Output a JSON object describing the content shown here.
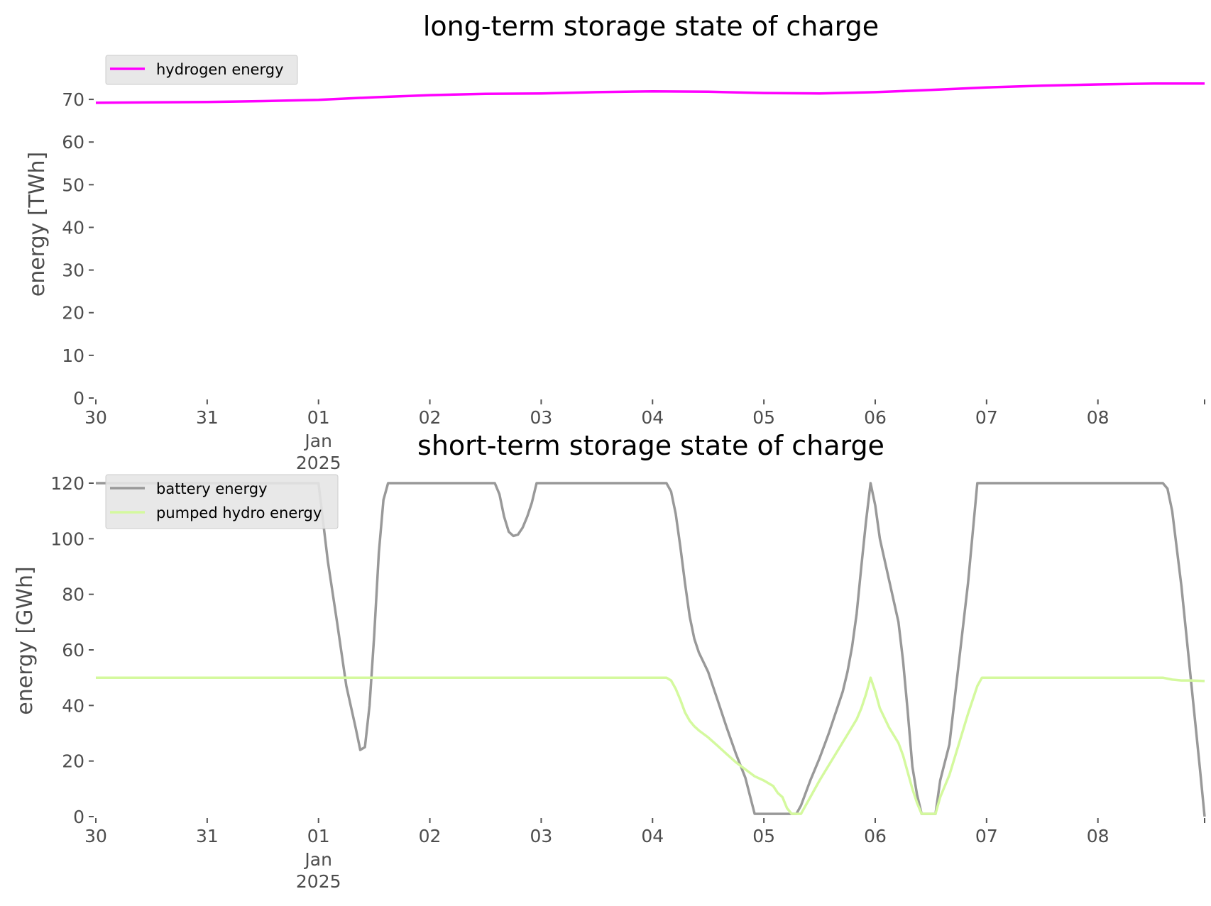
{
  "chart_data": [
    {
      "type": "line",
      "title": "long-term storage state of charge",
      "xlabel": "",
      "ylabel": "energy [TWh]",
      "ylim": [
        0,
        76
      ],
      "xlim": [
        "2024-12-30T00:00",
        "2025-01-08T23:00"
      ],
      "grid": false,
      "legend": "top-left",
      "x_ticks": [
        {
          "date": "2024-12-30",
          "label": "30",
          "sub1": "",
          "sub2": ""
        },
        {
          "date": "2024-12-31",
          "label": "31",
          "sub1": "",
          "sub2": ""
        },
        {
          "date": "2025-01-01",
          "label": "01",
          "sub1": "Jan",
          "sub2": "2025"
        },
        {
          "date": "2025-01-02",
          "label": "02",
          "sub1": "",
          "sub2": ""
        },
        {
          "date": "2025-01-03",
          "label": "03",
          "sub1": "",
          "sub2": ""
        },
        {
          "date": "2025-01-04",
          "label": "04",
          "sub1": "",
          "sub2": ""
        },
        {
          "date": "2025-01-05",
          "label": "05",
          "sub1": "",
          "sub2": ""
        },
        {
          "date": "2025-01-06",
          "label": "06",
          "sub1": "",
          "sub2": ""
        },
        {
          "date": "2025-01-07",
          "label": "07",
          "sub1": "",
          "sub2": ""
        },
        {
          "date": "2025-01-08",
          "label": "08",
          "sub1": "",
          "sub2": ""
        }
      ],
      "y_ticks": [
        0,
        10,
        20,
        30,
        40,
        50,
        60,
        70
      ],
      "series": [
        {
          "name": "hydrogen energy",
          "color": "#ff00ff",
          "points": [
            [
              "2024-12-30T00:00",
              69.2
            ],
            [
              "2024-12-30T12:00",
              69.3
            ],
            [
              "2024-12-31T00:00",
              69.4
            ],
            [
              "2024-12-31T12:00",
              69.6
            ],
            [
              "2025-01-01T00:00",
              69.9
            ],
            [
              "2025-01-01T12:00",
              70.5
            ],
            [
              "2025-01-02T00:00",
              71.0
            ],
            [
              "2025-01-02T12:00",
              71.3
            ],
            [
              "2025-01-03T00:00",
              71.4
            ],
            [
              "2025-01-03T12:00",
              71.7
            ],
            [
              "2025-01-04T00:00",
              71.9
            ],
            [
              "2025-01-04T12:00",
              71.8
            ],
            [
              "2025-01-05T00:00",
              71.5
            ],
            [
              "2025-01-05T12:00",
              71.4
            ],
            [
              "2025-01-06T00:00",
              71.7
            ],
            [
              "2025-01-06T12:00",
              72.2
            ],
            [
              "2025-01-07T00:00",
              72.8
            ],
            [
              "2025-01-07T12:00",
              73.2
            ],
            [
              "2025-01-08T00:00",
              73.5
            ],
            [
              "2025-01-08T12:00",
              73.7
            ],
            [
              "2025-01-08T23:00",
              73.7
            ]
          ]
        }
      ]
    },
    {
      "type": "line",
      "title": "short-term storage state of charge",
      "xlabel": "",
      "ylabel": "energy [GWh]",
      "ylim": [
        0,
        120
      ],
      "xlim": [
        "2024-12-30T00:00",
        "2025-01-08T23:00"
      ],
      "grid": false,
      "legend": "top-left",
      "x_ticks": [
        {
          "date": "2024-12-30",
          "label": "30",
          "sub1": "",
          "sub2": ""
        },
        {
          "date": "2024-12-31",
          "label": "31",
          "sub1": "",
          "sub2": ""
        },
        {
          "date": "2025-01-01",
          "label": "01",
          "sub1": "Jan",
          "sub2": "2025"
        },
        {
          "date": "2025-01-02",
          "label": "02",
          "sub1": "",
          "sub2": ""
        },
        {
          "date": "2025-01-03",
          "label": "03",
          "sub1": "",
          "sub2": ""
        },
        {
          "date": "2025-01-04",
          "label": "04",
          "sub1": "",
          "sub2": ""
        },
        {
          "date": "2025-01-05",
          "label": "05",
          "sub1": "",
          "sub2": ""
        },
        {
          "date": "2025-01-06",
          "label": "06",
          "sub1": "",
          "sub2": ""
        },
        {
          "date": "2025-01-07",
          "label": "07",
          "sub1": "",
          "sub2": ""
        },
        {
          "date": "2025-01-08",
          "label": "08",
          "sub1": "",
          "sub2": ""
        }
      ],
      "y_ticks": [
        0,
        20,
        40,
        60,
        80,
        100,
        120
      ],
      "series": [
        {
          "name": "battery energy",
          "color": "#999999",
          "points": [
            [
              "2024-12-30T00:00",
              120
            ],
            [
              "2024-12-31T00:00",
              120
            ],
            [
              "2025-01-01T00:00",
              120
            ],
            [
              "2025-01-01T02:00",
              92
            ],
            [
              "2025-01-01T04:00",
              70
            ],
            [
              "2025-01-01T06:00",
              47
            ],
            [
              "2025-01-01T08:00",
              32
            ],
            [
              "2025-01-01T09:00",
              24
            ],
            [
              "2025-01-01T10:00",
              25
            ],
            [
              "2025-01-01T11:00",
              40
            ],
            [
              "2025-01-01T12:00",
              65
            ],
            [
              "2025-01-01T13:00",
              95
            ],
            [
              "2025-01-01T14:00",
              114
            ],
            [
              "2025-01-01T15:00",
              120
            ],
            [
              "2025-01-02T00:00",
              120
            ],
            [
              "2025-01-02T14:00",
              120
            ],
            [
              "2025-01-02T15:00",
              116
            ],
            [
              "2025-01-02T16:00",
              108
            ],
            [
              "2025-01-02T17:00",
              102.5
            ],
            [
              "2025-01-02T18:00",
              101
            ],
            [
              "2025-01-02T19:00",
              101.5
            ],
            [
              "2025-01-02T20:00",
              104
            ],
            [
              "2025-01-02T21:00",
              108
            ],
            [
              "2025-01-02T22:00",
              113
            ],
            [
              "2025-01-02T23:00",
              120
            ],
            [
              "2025-01-03T00:00",
              120
            ],
            [
              "2025-01-04T03:00",
              120
            ],
            [
              "2025-01-04T04:00",
              117
            ],
            [
              "2025-01-04T05:00",
              109
            ],
            [
              "2025-01-04T06:00",
              97
            ],
            [
              "2025-01-04T07:00",
              84
            ],
            [
              "2025-01-04T08:00",
              72
            ],
            [
              "2025-01-04T09:00",
              64
            ],
            [
              "2025-01-04T10:00",
              59
            ],
            [
              "2025-01-04T11:00",
              55.5
            ],
            [
              "2025-01-04T12:00",
              52
            ],
            [
              "2025-01-04T14:00",
              42
            ],
            [
              "2025-01-04T16:00",
              32
            ],
            [
              "2025-01-04T18:00",
              22.5
            ],
            [
              "2025-01-04T20:00",
              14
            ],
            [
              "2025-01-04T22:00",
              1
            ],
            [
              "2025-01-05T00:00",
              1
            ],
            [
              "2025-01-05T06:00",
              1
            ],
            [
              "2025-01-05T07:00",
              1
            ],
            [
              "2025-01-05T08:00",
              4
            ],
            [
              "2025-01-05T10:00",
              13
            ],
            [
              "2025-01-05T12:00",
              21
            ],
            [
              "2025-01-05T14:00",
              30
            ],
            [
              "2025-01-05T16:00",
              40
            ],
            [
              "2025-01-05T17:00",
              45
            ],
            [
              "2025-01-05T18:00",
              52
            ],
            [
              "2025-01-05T19:00",
              61
            ],
            [
              "2025-01-05T20:00",
              73
            ],
            [
              "2025-01-05T21:00",
              90
            ],
            [
              "2025-01-05T22:00",
              106
            ],
            [
              "2025-01-05T23:00",
              120
            ],
            [
              "2025-01-06T00:00",
              112
            ],
            [
              "2025-01-06T01:00",
              100
            ],
            [
              "2025-01-06T03:00",
              85
            ],
            [
              "2025-01-06T05:00",
              70
            ],
            [
              "2025-01-06T06:00",
              56
            ],
            [
              "2025-01-06T07:00",
              38
            ],
            [
              "2025-01-06T08:00",
              18
            ],
            [
              "2025-01-06T09:00",
              8
            ],
            [
              "2025-01-06T10:00",
              1
            ],
            [
              "2025-01-06T13:00",
              1
            ],
            [
              "2025-01-06T14:00",
              13
            ],
            [
              "2025-01-06T16:00",
              26
            ],
            [
              "2025-01-06T18:00",
              55
            ],
            [
              "2025-01-06T20:00",
              84
            ],
            [
              "2025-01-06T22:00",
              120
            ],
            [
              "2025-01-07T00:00",
              120
            ],
            [
              "2025-01-08T14:00",
              120
            ],
            [
              "2025-01-08T15:00",
              118
            ],
            [
              "2025-01-08T16:00",
              110
            ],
            [
              "2025-01-08T18:00",
              83
            ],
            [
              "2025-01-08T20:00",
              50
            ],
            [
              "2025-01-08T22:00",
              17
            ],
            [
              "2025-01-08T23:00",
              0
            ]
          ]
        },
        {
          "name": "pumped hydro energy",
          "color": "#d4f99e",
          "points": [
            [
              "2024-12-30T00:00",
              50
            ],
            [
              "2025-01-04T03:00",
              50
            ],
            [
              "2025-01-04T04:00",
              49
            ],
            [
              "2025-01-04T05:00",
              46
            ],
            [
              "2025-01-04T06:00",
              42
            ],
            [
              "2025-01-04T07:00",
              37.5
            ],
            [
              "2025-01-04T08:00",
              34.5
            ],
            [
              "2025-01-04T09:00",
              32.5
            ],
            [
              "2025-01-04T10:00",
              31
            ],
            [
              "2025-01-04T12:00",
              28.5
            ],
            [
              "2025-01-04T14:00",
              25.5
            ],
            [
              "2025-01-04T16:00",
              22.5
            ],
            [
              "2025-01-04T18:00",
              19.5
            ],
            [
              "2025-01-04T20:00",
              17
            ],
            [
              "2025-01-04T22:00",
              14.5
            ],
            [
              "2025-01-05T00:00",
              13
            ],
            [
              "2025-01-05T02:00",
              11
            ],
            [
              "2025-01-05T03:00",
              8.5
            ],
            [
              "2025-01-05T04:00",
              7
            ],
            [
              "2025-01-05T05:00",
              3
            ],
            [
              "2025-01-05T06:00",
              1
            ],
            [
              "2025-01-05T08:00",
              1
            ],
            [
              "2025-01-05T10:00",
              7
            ],
            [
              "2025-01-05T12:00",
              13
            ],
            [
              "2025-01-05T14:00",
              18.5
            ],
            [
              "2025-01-05T16:00",
              24
            ],
            [
              "2025-01-05T18:00",
              29.5
            ],
            [
              "2025-01-05T20:00",
              35
            ],
            [
              "2025-01-05T21:00",
              39
            ],
            [
              "2025-01-05T22:00",
              44
            ],
            [
              "2025-01-05T23:00",
              50
            ],
            [
              "2025-01-06T00:00",
              45
            ],
            [
              "2025-01-06T01:00",
              39
            ],
            [
              "2025-01-06T03:00",
              32
            ],
            [
              "2025-01-06T05:00",
              26.5
            ],
            [
              "2025-01-06T06:00",
              22
            ],
            [
              "2025-01-06T07:00",
              16
            ],
            [
              "2025-01-06T08:00",
              10
            ],
            [
              "2025-01-06T09:00",
              5
            ],
            [
              "2025-01-06T10:00",
              1
            ],
            [
              "2025-01-06T13:00",
              1
            ],
            [
              "2025-01-06T14:00",
              7
            ],
            [
              "2025-01-06T16:00",
              15
            ],
            [
              "2025-01-06T18:00",
              26
            ],
            [
              "2025-01-06T20:00",
              37
            ],
            [
              "2025-01-06T22:00",
              47
            ],
            [
              "2025-01-06T23:00",
              50
            ],
            [
              "2025-01-07T00:00",
              50
            ],
            [
              "2025-01-08T14:00",
              50
            ],
            [
              "2025-01-08T16:00",
              49.3
            ],
            [
              "2025-01-08T18:00",
              49
            ],
            [
              "2025-01-08T20:00",
              49
            ],
            [
              "2025-01-08T23:00",
              48.8
            ]
          ]
        }
      ]
    }
  ]
}
